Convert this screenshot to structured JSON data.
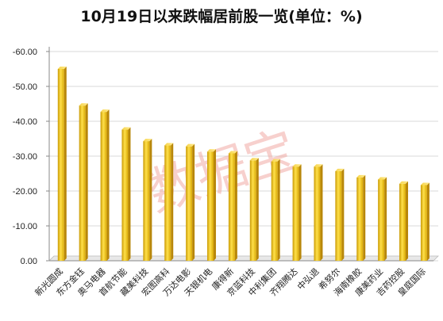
{
  "chart_data": {
    "type": "bar",
    "title": "10月19日以来跌幅居前股一览(单位：%)",
    "categories": [
      "新光圆成",
      "东方金钰",
      "奥马电器",
      "首航节能",
      "藏美科技",
      "宏图高科",
      "万达电影",
      "天银机电",
      "康得新",
      "京蓝科技",
      "中利集团",
      "齐翔腾达",
      "中弘退",
      "希努尔",
      "海南橡胶",
      "康美药业",
      "吉药控股",
      "皇庭国际"
    ],
    "values": [
      -55.0,
      -44.5,
      -42.7,
      -37.6,
      -34.3,
      -33.1,
      -32.8,
      -31.3,
      -30.8,
      -28.8,
      -28.5,
      -27.0,
      -27.0,
      -25.7,
      -23.9,
      -23.3,
      -22.1,
      -21.7
    ],
    "yticks": [
      "-60.00",
      "-50.00",
      "-40.00",
      "-30.00",
      "-20.00",
      "-10.00",
      "0.00"
    ],
    "ylim": [
      0,
      -60
    ],
    "grid": true,
    "bar_color": "#f2c20a",
    "watermark": "数据宝"
  }
}
